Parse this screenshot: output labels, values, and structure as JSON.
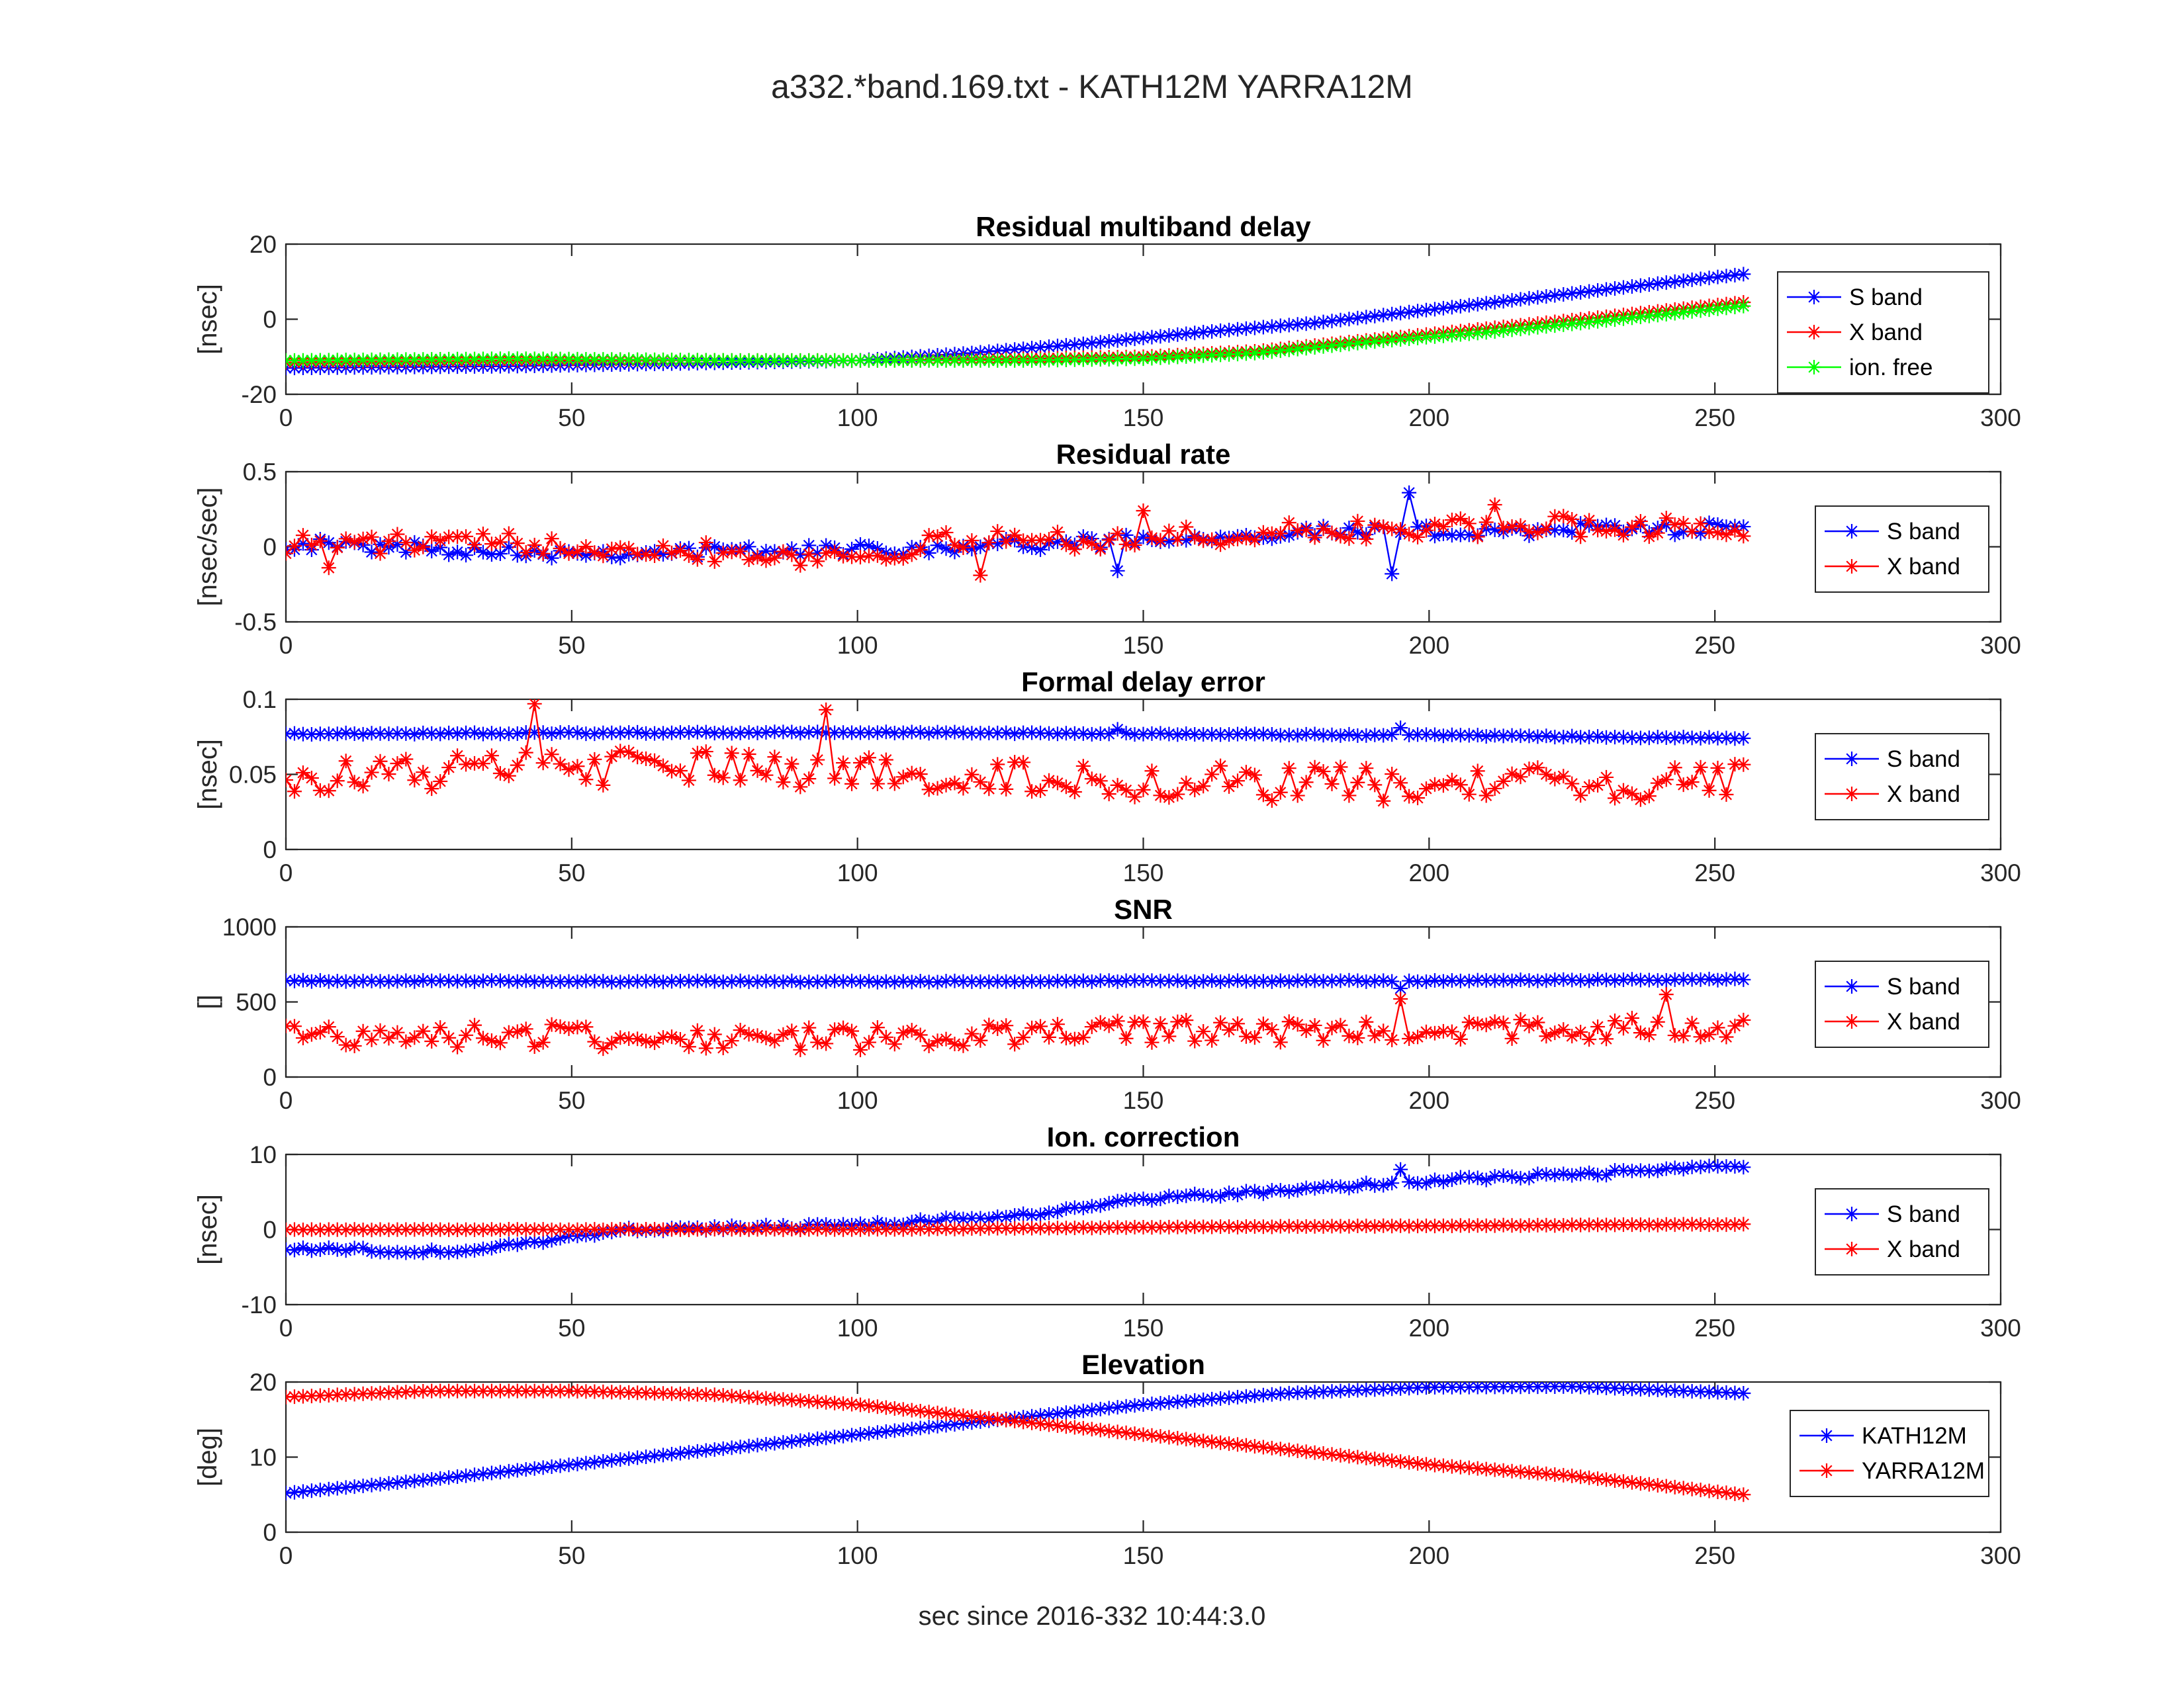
{
  "figure": {
    "title": "a332.*band.169.txt - KATH12M YARRA12M",
    "xlabel": "sec since 2016-332 10:44:3.0"
  },
  "colors": {
    "s_band": "#0000ff",
    "x_band": "#ff0000",
    "ion_free": "#00ff00",
    "axes": "#262626"
  },
  "chart_data": [
    {
      "type": "line",
      "title": "Residual multiband delay",
      "ylabel": "[nsec]",
      "xlim": [
        0,
        300
      ],
      "ylim": [
        -20,
        20
      ],
      "xticks": [
        0,
        50,
        100,
        150,
        200,
        250,
        300
      ],
      "xtick_labels": [
        "0",
        "50",
        "100",
        "150",
        "200",
        "250",
        "300"
      ],
      "yticks": [
        -20,
        0,
        20
      ],
      "ytick_labels": [
        "-20",
        "0",
        "20"
      ],
      "legend_position": "right",
      "x_range": [
        0,
        255
      ],
      "x_step": 1.5,
      "series": [
        {
          "name": "S band",
          "color": "#0000ff",
          "marker": "*",
          "x": [
            0,
            40,
            80,
            100,
            120,
            140,
            160,
            180,
            200,
            220,
            240,
            255
          ],
          "y": [
            -13,
            -12.5,
            -11.5,
            -11,
            -9,
            -6.5,
            -3.5,
            -1,
            2.5,
            6,
            9.5,
            12
          ]
        },
        {
          "name": "X band",
          "color": "#ff0000",
          "marker": "*",
          "x": [
            0,
            40,
            80,
            100,
            130,
            150,
            170,
            190,
            210,
            230,
            255
          ],
          "y": [
            -11.5,
            -11,
            -11,
            -11,
            -10.5,
            -10,
            -8.5,
            -5.5,
            -2.5,
            0.5,
            4.5
          ]
        },
        {
          "name": "ion. free",
          "color": "#00ff00",
          "marker": "*",
          "x": [
            0,
            40,
            80,
            100,
            130,
            150,
            170,
            190,
            210,
            230,
            255
          ],
          "y": [
            -11,
            -10.5,
            -11,
            -11,
            -11,
            -10.5,
            -9,
            -6,
            -3.5,
            -0.5,
            3.5
          ]
        }
      ]
    },
    {
      "type": "line",
      "title": "Residual rate",
      "ylabel": "[nsec/sec]",
      "xlim": [
        0,
        300
      ],
      "ylim": [
        -0.5,
        0.5
      ],
      "xticks": [
        0,
        50,
        100,
        150,
        200,
        250,
        300
      ],
      "xtick_labels": [
        "0",
        "50",
        "100",
        "150",
        "200",
        "250",
        "300"
      ],
      "yticks": [
        -0.5,
        0,
        0.5
      ],
      "ytick_labels": [
        "-0.5",
        "0",
        "0.5"
      ],
      "legend_position": "right",
      "x_range": [
        0,
        255
      ],
      "x_step": 1.5,
      "series": [
        {
          "name": "S band",
          "color": "#0000ff",
          "marker": "*",
          "x": [
            0,
            50,
            100,
            140,
            160,
            180,
            200,
            230,
            255
          ],
          "y": [
            0.02,
            -0.04,
            -0.02,
            0.03,
            0.07,
            0.1,
            0.1,
            0.12,
            0.12
          ],
          "noise": 0.04,
          "spikes": [
            {
              "x": 145,
              "y": 0.21
            },
            {
              "x": 146,
              "y": -0.16
            },
            {
              "x": 194,
              "y": -0.18
            },
            {
              "x": 196,
              "y": 0.36
            }
          ]
        },
        {
          "name": "X band",
          "color": "#ff0000",
          "marker": "*",
          "x": [
            0,
            50,
            90,
            100,
            120,
            150,
            180,
            220,
            255
          ],
          "y": [
            0.02,
            0.02,
            -0.06,
            -0.06,
            0.05,
            0.05,
            0.1,
            0.14,
            0.12
          ],
          "noise": 0.07,
          "spikes": [
            {
              "x": 7,
              "y": -0.14
            },
            {
              "x": 121,
              "y": -0.19
            },
            {
              "x": 150,
              "y": 0.24
            },
            {
              "x": 212,
              "y": 0.28
            }
          ]
        }
      ]
    },
    {
      "type": "line",
      "title": "Formal delay error",
      "ylabel": "[nsec]",
      "xlim": [
        0,
        300
      ],
      "ylim": [
        0,
        0.1
      ],
      "xticks": [
        0,
        50,
        100,
        150,
        200,
        250,
        300
      ],
      "xtick_labels": [
        "0",
        "50",
        "100",
        "150",
        "200",
        "250",
        "300"
      ],
      "yticks": [
        0,
        0.05,
        0.1
      ],
      "ytick_labels": [
        "0",
        "0.05",
        "0.1"
      ],
      "legend_position": "right",
      "x_range": [
        0,
        255
      ],
      "x_step": 1.5,
      "series": [
        {
          "name": "S band",
          "color": "#0000ff",
          "marker": "*",
          "x": [
            0,
            100,
            150,
            200,
            255
          ],
          "y": [
            0.077,
            0.078,
            0.077,
            0.076,
            0.074
          ],
          "noise": 0.0005,
          "spikes": [
            {
              "x": 145,
              "y": 0.08
            },
            {
              "x": 195,
              "y": 0.081
            }
          ]
        },
        {
          "name": "X band",
          "color": "#ff0000",
          "marker": "*",
          "x": [
            0,
            50,
            100,
            150,
            200,
            255
          ],
          "y": [
            0.048,
            0.055,
            0.052,
            0.045,
            0.042,
            0.045
          ],
          "noise": 0.012,
          "spikes": [
            {
              "x": 44,
              "y": 0.097
            },
            {
              "x": 94,
              "y": 0.093
            }
          ]
        }
      ]
    },
    {
      "type": "line",
      "title": "SNR",
      "ylabel": "[]",
      "xlim": [
        0,
        300
      ],
      "ylim": [
        0,
        1000
      ],
      "xticks": [
        0,
        50,
        100,
        150,
        200,
        250,
        300
      ],
      "xtick_labels": [
        "0",
        "50",
        "100",
        "150",
        "200",
        "250",
        "300"
      ],
      "yticks": [
        0,
        500,
        1000
      ],
      "ytick_labels": [
        "0",
        "500",
        "1000"
      ],
      "legend_position": "right",
      "x_range": [
        0,
        255
      ],
      "x_step": 1.5,
      "series": [
        {
          "name": "S band",
          "color": "#0000ff",
          "marker": "*",
          "x": [
            0,
            100,
            200,
            255
          ],
          "y": [
            640,
            635,
            640,
            650
          ],
          "noise": 5,
          "spikes": [
            {
              "x": 195,
              "y": 590
            }
          ]
        },
        {
          "name": "X band",
          "color": "#ff0000",
          "marker": "*",
          "x": [
            0,
            50,
            100,
            150,
            200,
            255
          ],
          "y": [
            290,
            270,
            250,
            300,
            310,
            330
          ],
          "noise": 80,
          "spikes": [
            {
              "x": 195,
              "y": 520
            },
            {
              "x": 242,
              "y": 550
            }
          ]
        }
      ]
    },
    {
      "type": "line",
      "title": "Ion. correction",
      "ylabel": "[nsec]",
      "xlim": [
        0,
        300
      ],
      "ylim": [
        -10,
        10
      ],
      "xticks": [
        0,
        50,
        100,
        150,
        200,
        250,
        300
      ],
      "xtick_labels": [
        "0",
        "50",
        "100",
        "150",
        "200",
        "250",
        "300"
      ],
      "yticks": [
        -10,
        0,
        10
      ],
      "ytick_labels": [
        "-10",
        "0",
        "10"
      ],
      "legend_position": "right",
      "x_range": [
        0,
        255
      ],
      "x_step": 1.5,
      "series": [
        {
          "name": "S band",
          "color": "#0000ff",
          "marker": "*",
          "x": [
            0,
            30,
            60,
            100,
            130,
            150,
            180,
            200,
            230,
            255
          ],
          "y": [
            -2.5,
            -3,
            0,
            0.5,
            2,
            4,
            5.5,
            6.5,
            7.5,
            8.5
          ],
          "noise": 0.3,
          "spikes": [
            {
              "x": 195,
              "y": 8
            }
          ]
        },
        {
          "name": "X band",
          "color": "#ff0000",
          "marker": "*",
          "x": [
            0,
            60,
            100,
            150,
            200,
            255
          ],
          "y": [
            0,
            0,
            0,
            0.3,
            0.5,
            0.7
          ],
          "noise": 0.05
        }
      ]
    },
    {
      "type": "line",
      "title": "Elevation",
      "ylabel": "[deg]",
      "xlim": [
        0,
        300
      ],
      "ylim": [
        0,
        20
      ],
      "xticks": [
        0,
        50,
        100,
        150,
        200,
        250,
        300
      ],
      "xtick_labels": [
        "0",
        "50",
        "100",
        "150",
        "200",
        "250",
        "300"
      ],
      "yticks": [
        0,
        10,
        20
      ],
      "ytick_labels": [
        "0",
        "10",
        "20"
      ],
      "legend_position": "right",
      "x_range": [
        0,
        255
      ],
      "x_step": 1.5,
      "series": [
        {
          "name": "KATH12M",
          "color": "#0000ff",
          "marker": "*",
          "x": [
            0,
            25,
            50,
            75,
            100,
            125,
            150,
            175,
            200,
            225,
            255
          ],
          "y": [
            5.2,
            7,
            9,
            11,
            13,
            15,
            17,
            18.5,
            19.3,
            19.4,
            18.5
          ]
        },
        {
          "name": "YARRA12M",
          "color": "#ff0000",
          "marker": "*",
          "x": [
            0,
            25,
            50,
            75,
            100,
            125,
            150,
            175,
            200,
            225,
            255
          ],
          "y": [
            18,
            18.8,
            18.8,
            18.3,
            17,
            15,
            13,
            11,
            9,
            7.5,
            5
          ]
        }
      ]
    }
  ]
}
